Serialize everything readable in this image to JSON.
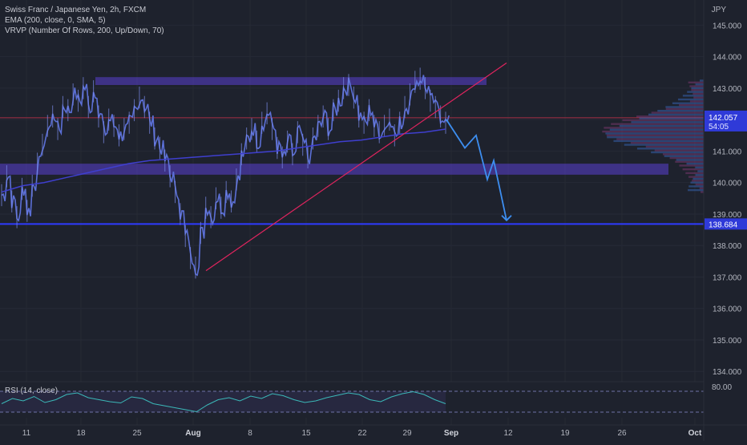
{
  "legend": {
    "symbol_line": "Swiss Franc / Japanese Yen, 2h, FXCM",
    "ema_line": "EMA (200, close, 0, SMA, 5)",
    "vrvp_line": "VRVP (Number Of Rows, 200, Up/Down, 70)"
  },
  "price_axis": {
    "currency": "JPY",
    "ticks": [
      "145.000",
      "144.000",
      "143.000",
      "142.000",
      "141.000",
      "140.000",
      "139.000",
      "138.000",
      "137.000",
      "136.000",
      "135.000",
      "134.000"
    ],
    "last_price_label": "142.057",
    "countdown_label": "54:05",
    "target_label": "138.684"
  },
  "time_axis": {
    "ticks": [
      "11",
      "18",
      "25",
      "Aug",
      "8",
      "15",
      "22",
      "Sep",
      "12",
      "19",
      "26",
      "Oct"
    ],
    "ticks_extra": [
      "29"
    ]
  },
  "rsi": {
    "label": "RSI (14, close)",
    "level_label": "80.00"
  },
  "colors": {
    "background": "#1e222d",
    "candle": "#5b6fd6",
    "ema": "#3f3fcf",
    "trendline": "#e0245e",
    "zone": "#5a3fd0",
    "target_line": "#2e3bff",
    "projection": "#3d8ef0",
    "price_tag": "#2f3ad8",
    "last_price_line": "#c8324a",
    "rsi_line": "#3bb8b8"
  },
  "chart_data": {
    "type": "line",
    "symbol": "Swiss Franc / Japanese Yen",
    "timeframe": "2h",
    "y_range": [
      133.7,
      145.8
    ],
    "key_levels": {
      "resistance_zone": [
        143.1,
        143.35
      ],
      "support_zone": [
        140.25,
        140.6
      ],
      "target": 138.684,
      "last_price": 142.057
    },
    "price_path": [
      139.6,
      140.2,
      139.4,
      138.9,
      139.8,
      139.1,
      139.9,
      140.6,
      141.2,
      141.8,
      142.1,
      141.7,
      142.4,
      142.3,
      142.8,
      142.6,
      143.0,
      142.4,
      142.9,
      142.1,
      141.6,
      142.0,
      141.8,
      141.5,
      141.7,
      141.9,
      142.3,
      142.7,
      142.4,
      141.9,
      141.4,
      141.1,
      140.7,
      140.2,
      139.7,
      139.0,
      138.3,
      137.6,
      137.3,
      138.4,
      139.2,
      138.9,
      139.5,
      139.2,
      139.7,
      139.4,
      140.1,
      140.9,
      141.4,
      141.7,
      141.3,
      141.9,
      142.2,
      141.7,
      141.1,
      140.8,
      141.3,
      140.9,
      141.6,
      141.2,
      140.8,
      141.4,
      141.8,
      142.1,
      141.7,
      142.3,
      142.6,
      143.0,
      143.1,
      142.7,
      142.1,
      141.9,
      142.3,
      141.8,
      141.6,
      141.8,
      142.0,
      141.5,
      141.9,
      142.4,
      142.8,
      143.2,
      143.3,
      143.0,
      142.6,
      142.4,
      142.1,
      141.9
    ],
    "ema_path": [
      139.7,
      139.9,
      140.0,
      140.15,
      140.3,
      140.45,
      140.6,
      140.7,
      140.75,
      140.8,
      140.85,
      140.9,
      140.95,
      141.0,
      141.1,
      141.2,
      141.3,
      141.35,
      141.45,
      141.55,
      141.6,
      141.7
    ],
    "projection": [
      142.0,
      141.1,
      141.5,
      140.1,
      140.7,
      138.8
    ],
    "rsi_values": [
      45,
      58,
      52,
      63,
      48,
      55,
      68,
      72,
      60,
      55,
      50,
      47,
      62,
      58,
      45,
      40,
      35,
      30,
      25,
      42,
      55,
      60,
      52,
      64,
      58,
      70,
      65,
      55,
      48,
      52,
      60,
      66,
      72,
      68,
      55,
      50,
      62,
      70,
      75,
      68,
      55,
      45
    ]
  }
}
